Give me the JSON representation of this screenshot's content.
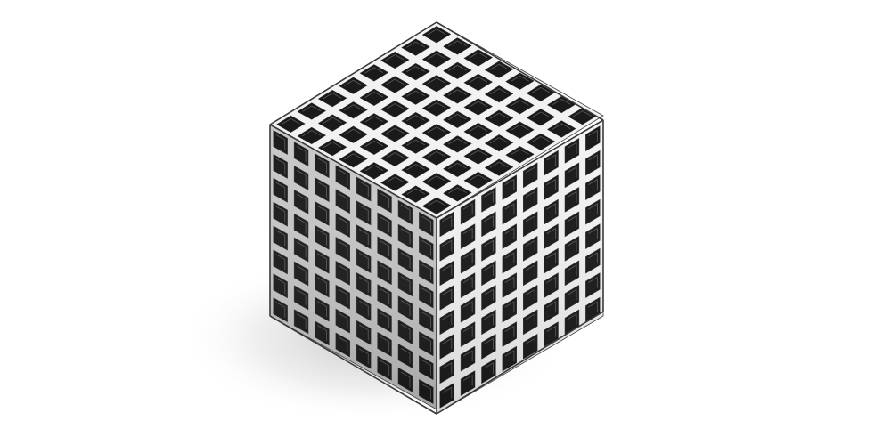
{
  "scene": {
    "subject": "lattice-cube",
    "cells_per_edge": 8,
    "colors": {
      "background": "#ffffff",
      "frame_light": "#f2f2f2",
      "frame_mid": "#c8c8c8",
      "frame_dark": "#8a8a8a",
      "frame_edge": "#3a3a3a",
      "void": "#1a1a1a",
      "shadow": "#9a9a9a"
    }
  }
}
